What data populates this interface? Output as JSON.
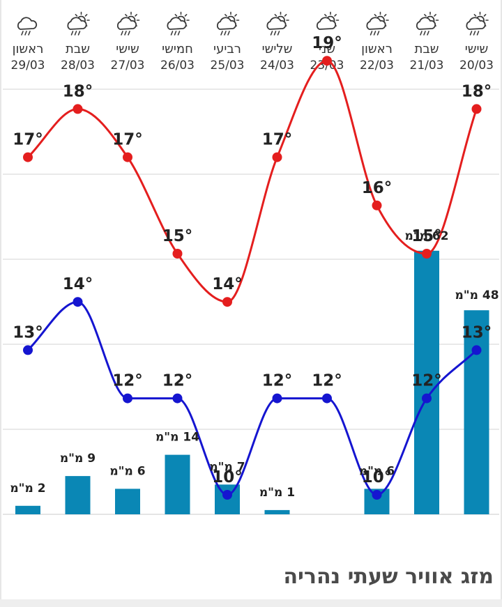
{
  "chart_data": {
    "type": "combo",
    "days": [
      {
        "day": "ראשון",
        "date": "29/03",
        "icon": "rain-cloud-icon"
      },
      {
        "day": "שבת",
        "date": "28/03",
        "icon": "sun-cloud-rain-icon"
      },
      {
        "day": "שישי",
        "date": "27/03",
        "icon": "sun-cloud-rain-icon"
      },
      {
        "day": "חמישי",
        "date": "26/03",
        "icon": "sun-cloud-rain-icon"
      },
      {
        "day": "רביעי",
        "date": "25/03",
        "icon": "sun-cloud-rain-icon"
      },
      {
        "day": "שלישי",
        "date": "24/03",
        "icon": "sun-cloud-rain-icon"
      },
      {
        "day": "שני",
        "date": "23/03",
        "icon": "partly-cloudy-icon"
      },
      {
        "day": "ראשון",
        "date": "22/03",
        "icon": "sun-cloud-rain-icon"
      },
      {
        "day": "שבת",
        "date": "21/03",
        "icon": "sun-cloud-rain-icon"
      },
      {
        "day": "שישי",
        "date": "20/03",
        "icon": "sun-cloud-rain-icon"
      }
    ],
    "series": [
      {
        "name": "max",
        "color": "#e41e1e",
        "values": [
          17,
          18,
          17,
          15,
          14,
          17,
          19,
          16,
          15,
          18
        ]
      },
      {
        "name": "min",
        "color": "#1515d0",
        "values": [
          13,
          14,
          12,
          12,
          10,
          12,
          12,
          10,
          12,
          13
        ]
      }
    ],
    "rain": {
      "color": "#0a87b5",
      "values": [
        2,
        9,
        6,
        14,
        7,
        1,
        null,
        6,
        62,
        48
      ],
      "unit": "מ\"מ"
    },
    "degree_symbol": "°"
  },
  "title": "מזג אוויר שעתי נהריה"
}
